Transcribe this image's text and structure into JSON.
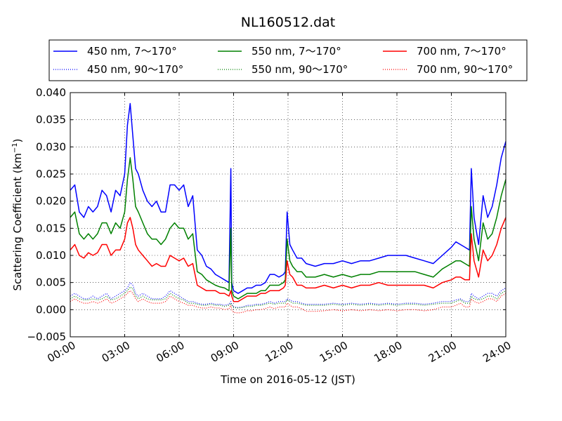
{
  "chart_data": {
    "type": "line",
    "title": "NL160512.dat",
    "xlabel": "Time on 2016-05-12 (JST)",
    "ylabel": "Scattering Coefficient (km",
    "ylabel_sup": "−1",
    "ylabel_end": ")",
    "xlim": [
      0,
      24
    ],
    "ylim": [
      -0.005,
      0.04
    ],
    "x_unit": "hours",
    "grid": true,
    "legend_placement": "top, above plot, 3 columns",
    "x_ticks": [
      {
        "value": 0,
        "label": "00:00"
      },
      {
        "value": 3,
        "label": "03:00"
      },
      {
        "value": 6,
        "label": "06:00"
      },
      {
        "value": 9,
        "label": "09:00"
      },
      {
        "value": 12,
        "label": "12:00"
      },
      {
        "value": 15,
        "label": "15:00"
      },
      {
        "value": 18,
        "label": "18:00"
      },
      {
        "value": 21,
        "label": "21:00"
      },
      {
        "value": 24,
        "label": "24:00"
      }
    ],
    "y_ticks": [
      {
        "value": -0.005,
        "label": "−0.005"
      },
      {
        "value": 0.0,
        "label": "0.000"
      },
      {
        "value": 0.005,
        "label": "0.005"
      },
      {
        "value": 0.01,
        "label": "0.010"
      },
      {
        "value": 0.015,
        "label": "0.015"
      },
      {
        "value": 0.02,
        "label": "0.020"
      },
      {
        "value": 0.025,
        "label": "0.025"
      },
      {
        "value": 0.03,
        "label": "0.030"
      },
      {
        "value": 0.035,
        "label": "0.035"
      },
      {
        "value": 0.04,
        "label": "0.040"
      }
    ],
    "x": [
      0.0,
      0.25,
      0.5,
      0.75,
      1.0,
      1.25,
      1.5,
      1.75,
      2.0,
      2.25,
      2.5,
      2.75,
      3.0,
      3.15,
      3.3,
      3.45,
      3.6,
      3.75,
      4.0,
      4.25,
      4.5,
      4.75,
      5.0,
      5.25,
      5.5,
      5.75,
      6.0,
      6.25,
      6.5,
      6.75,
      7.0,
      7.25,
      7.5,
      7.75,
      8.0,
      8.25,
      8.5,
      8.75,
      8.85,
      8.9,
      9.0,
      9.25,
      9.5,
      9.75,
      10.0,
      10.25,
      10.5,
      10.75,
      11.0,
      11.25,
      11.5,
      11.75,
      11.85,
      11.95,
      12.1,
      12.25,
      12.5,
      12.75,
      13.0,
      13.5,
      14.0,
      14.5,
      15.0,
      15.5,
      16.0,
      16.5,
      17.0,
      17.5,
      18.0,
      18.5,
      19.0,
      19.5,
      20.0,
      20.5,
      21.0,
      21.25,
      21.5,
      21.75,
      22.0,
      22.1,
      22.25,
      22.5,
      22.75,
      23.0,
      23.25,
      23.5,
      23.75,
      24.0
    ],
    "series": [
      {
        "name": "450 nm, 7～170°",
        "color": "#0000ff",
        "style": "solid",
        "values": [
          0.022,
          0.023,
          0.018,
          0.017,
          0.019,
          0.018,
          0.019,
          0.022,
          0.021,
          0.018,
          0.022,
          0.021,
          0.025,
          0.034,
          0.038,
          0.032,
          0.026,
          0.025,
          0.022,
          0.02,
          0.019,
          0.02,
          0.018,
          0.018,
          0.023,
          0.023,
          0.022,
          0.023,
          0.019,
          0.021,
          0.011,
          0.01,
          0.008,
          0.0075,
          0.0065,
          0.006,
          0.0055,
          0.005,
          0.026,
          0.005,
          0.0035,
          0.003,
          0.0035,
          0.004,
          0.004,
          0.0045,
          0.0045,
          0.005,
          0.0065,
          0.0065,
          0.006,
          0.0065,
          0.007,
          0.018,
          0.012,
          0.011,
          0.0095,
          0.0095,
          0.0085,
          0.008,
          0.0085,
          0.0085,
          0.009,
          0.0085,
          0.009,
          0.009,
          0.0095,
          0.01,
          0.01,
          0.01,
          0.0095,
          0.009,
          0.0085,
          0.01,
          0.0115,
          0.0125,
          0.012,
          0.0115,
          0.011,
          0.026,
          0.017,
          0.012,
          0.021,
          0.017,
          0.019,
          0.023,
          0.028,
          0.031
        ]
      },
      {
        "name": "450 nm, 90～170°",
        "color": "#0000ff",
        "style": "dotted",
        "values": [
          0.0025,
          0.003,
          0.0025,
          0.002,
          0.002,
          0.0025,
          0.002,
          0.0025,
          0.003,
          0.002,
          0.0025,
          0.003,
          0.0035,
          0.004,
          0.005,
          0.0045,
          0.003,
          0.0025,
          0.003,
          0.0025,
          0.002,
          0.002,
          0.002,
          0.0025,
          0.0035,
          0.003,
          0.0025,
          0.002,
          0.0015,
          0.0015,
          0.0012,
          0.001,
          0.001,
          0.0012,
          0.001,
          0.001,
          0.0008,
          0.001,
          0.0015,
          0.001,
          0.0005,
          0.0004,
          0.0005,
          0.0008,
          0.0008,
          0.001,
          0.001,
          0.0012,
          0.0015,
          0.0012,
          0.0015,
          0.0015,
          0.0015,
          0.002,
          0.0018,
          0.0015,
          0.0015,
          0.0012,
          0.001,
          0.001,
          0.001,
          0.0012,
          0.001,
          0.0012,
          0.001,
          0.0012,
          0.001,
          0.0012,
          0.001,
          0.0012,
          0.0012,
          0.001,
          0.0012,
          0.0015,
          0.0015,
          0.0018,
          0.002,
          0.0015,
          0.0015,
          0.003,
          0.0025,
          0.002,
          0.0025,
          0.003,
          0.003,
          0.0025,
          0.0035,
          0.004
        ]
      },
      {
        "name": "550 nm, 7～170°",
        "color": "#008000",
        "style": "solid",
        "values": [
          0.017,
          0.018,
          0.014,
          0.013,
          0.014,
          0.013,
          0.014,
          0.016,
          0.016,
          0.014,
          0.016,
          0.015,
          0.018,
          0.024,
          0.028,
          0.024,
          0.019,
          0.018,
          0.016,
          0.014,
          0.013,
          0.013,
          0.012,
          0.013,
          0.015,
          0.016,
          0.015,
          0.015,
          0.013,
          0.014,
          0.007,
          0.0065,
          0.0055,
          0.005,
          0.0045,
          0.0042,
          0.004,
          0.0035,
          0.015,
          0.0035,
          0.0025,
          0.002,
          0.0025,
          0.003,
          0.003,
          0.003,
          0.0035,
          0.0035,
          0.0045,
          0.0045,
          0.0045,
          0.005,
          0.0055,
          0.013,
          0.009,
          0.008,
          0.007,
          0.007,
          0.006,
          0.006,
          0.0065,
          0.006,
          0.0065,
          0.006,
          0.0065,
          0.0065,
          0.007,
          0.007,
          0.007,
          0.007,
          0.007,
          0.0065,
          0.006,
          0.0075,
          0.0085,
          0.009,
          0.009,
          0.0085,
          0.008,
          0.019,
          0.013,
          0.009,
          0.016,
          0.013,
          0.014,
          0.017,
          0.021,
          0.024
        ]
      },
      {
        "name": "550 nm, 90～170°",
        "color": "#008000",
        "style": "dotted",
        "values": [
          0.002,
          0.0025,
          0.002,
          0.0018,
          0.0018,
          0.002,
          0.0018,
          0.002,
          0.0025,
          0.0018,
          0.002,
          0.0025,
          0.003,
          0.0035,
          0.0042,
          0.0038,
          0.0025,
          0.002,
          0.0025,
          0.002,
          0.0018,
          0.0018,
          0.0018,
          0.002,
          0.003,
          0.0025,
          0.002,
          0.0018,
          0.0012,
          0.0012,
          0.001,
          0.0008,
          0.0008,
          0.001,
          0.0008,
          0.0008,
          0.0006,
          0.0008,
          0.0012,
          0.0008,
          0.0004,
          0.0003,
          0.0004,
          0.0006,
          0.0006,
          0.0008,
          0.0008,
          0.001,
          0.0012,
          0.001,
          0.0012,
          0.0012,
          0.0012,
          0.0018,
          0.0015,
          0.0012,
          0.0012,
          0.001,
          0.0008,
          0.0008,
          0.0008,
          0.001,
          0.0008,
          0.001,
          0.0008,
          0.001,
          0.0008,
          0.001,
          0.0008,
          0.001,
          0.001,
          0.0008,
          0.001,
          0.0012,
          0.0012,
          0.0015,
          0.0018,
          0.0012,
          0.0012,
          0.0025,
          0.002,
          0.0018,
          0.002,
          0.0025,
          0.0025,
          0.002,
          0.003,
          0.0035
        ]
      },
      {
        "name": "700 nm, 7～170°",
        "color": "#ff0000",
        "style": "solid",
        "values": [
          0.011,
          0.012,
          0.01,
          0.0095,
          0.0105,
          0.01,
          0.0105,
          0.012,
          0.012,
          0.01,
          0.011,
          0.011,
          0.013,
          0.016,
          0.017,
          0.015,
          0.012,
          0.011,
          0.01,
          0.009,
          0.008,
          0.0085,
          0.008,
          0.008,
          0.01,
          0.0095,
          0.009,
          0.0095,
          0.008,
          0.0085,
          0.0045,
          0.004,
          0.0035,
          0.0035,
          0.0035,
          0.003,
          0.003,
          0.0025,
          0.0035,
          0.0025,
          0.0015,
          0.0015,
          0.002,
          0.0025,
          0.0025,
          0.0025,
          0.003,
          0.003,
          0.0035,
          0.0035,
          0.0035,
          0.004,
          0.0045,
          0.009,
          0.0065,
          0.006,
          0.0045,
          0.0045,
          0.004,
          0.004,
          0.0045,
          0.004,
          0.0045,
          0.004,
          0.0045,
          0.0045,
          0.005,
          0.0045,
          0.0045,
          0.0045,
          0.0045,
          0.0045,
          0.004,
          0.005,
          0.0055,
          0.006,
          0.006,
          0.0055,
          0.0055,
          0.014,
          0.009,
          0.006,
          0.011,
          0.009,
          0.01,
          0.012,
          0.015,
          0.017
        ]
      },
      {
        "name": "700 nm, 90～170°",
        "color": "#ff0000",
        "style": "dotted",
        "values": [
          0.0015,
          0.002,
          0.0015,
          0.0012,
          0.0012,
          0.0015,
          0.0012,
          0.0015,
          0.002,
          0.0012,
          0.0015,
          0.002,
          0.0025,
          0.003,
          0.0035,
          0.003,
          0.002,
          0.0015,
          0.002,
          0.0015,
          0.0012,
          0.0012,
          0.0012,
          0.0015,
          0.0025,
          0.002,
          0.0015,
          0.0012,
          0.0008,
          0.0008,
          0.0005,
          0.0003,
          0.0003,
          0.0005,
          0.0003,
          0.0003,
          0.0,
          0.0002,
          0.0008,
          0.0,
          -0.0005,
          -0.0006,
          -0.0005,
          -0.0002,
          -0.0002,
          0.0,
          0.0,
          0.0002,
          0.0005,
          0.0002,
          0.0005,
          0.0005,
          0.0005,
          0.0012,
          0.0008,
          0.0005,
          0.0005,
          0.0002,
          -0.0003,
          -0.0003,
          -0.0002,
          0.0,
          -0.0002,
          0.0,
          -0.0002,
          0.0,
          -0.0002,
          0.0,
          -0.0002,
          0.0,
          0.0,
          -0.0002,
          0.0,
          0.0005,
          0.0005,
          0.0008,
          0.0012,
          0.0005,
          0.0005,
          0.002,
          0.0015,
          0.0012,
          0.0015,
          0.002,
          0.002,
          0.0015,
          0.0025,
          0.003
        ]
      }
    ]
  }
}
